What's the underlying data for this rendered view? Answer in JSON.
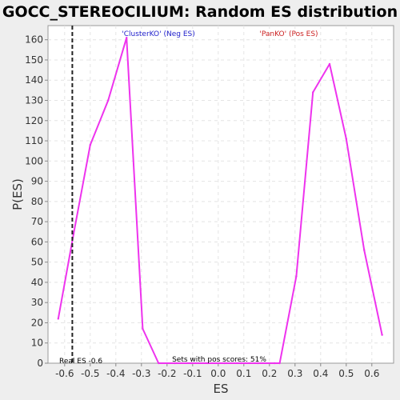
{
  "chart_data": {
    "type": "line",
    "title": "GOCC_STEREOCILIUM: Random ES distribution",
    "xlabel": "ES",
    "ylabel": "P(ES)",
    "xlim": [
      -0.665,
      0.685
    ],
    "ylim": [
      0,
      167
    ],
    "x_ticks": [
      "-0.6",
      "-0.5",
      "-0.4",
      "-0.3",
      "-0.2",
      "-0.1",
      "0.0",
      "0.1",
      "0.2",
      "0.3",
      "0.4",
      "0.5",
      "0.6"
    ],
    "y_ticks": [
      "0",
      "10",
      "20",
      "30",
      "40",
      "50",
      "60",
      "70",
      "80",
      "90",
      "100",
      "110",
      "120",
      "130",
      "140",
      "150",
      "160"
    ],
    "grid": true,
    "series": [
      {
        "color": "#ee33ee",
        "x": [
          -0.625,
          -0.565,
          -0.5,
          -0.43,
          -0.358,
          -0.295,
          -0.233,
          -0.17,
          -0.105,
          -0.04,
          0.025,
          0.09,
          0.155,
          0.22,
          0.24,
          0.305,
          0.37,
          0.435,
          0.5,
          0.57,
          0.64
        ],
        "y": [
          22,
          64,
          108,
          130,
          161,
          17,
          0,
          0,
          0,
          0,
          0,
          0,
          0,
          0,
          0,
          43,
          134,
          148,
          111,
          56,
          14
        ]
      }
    ],
    "real_es": {
      "x": -0.57,
      "label": "Real ES -0.6"
    },
    "annotations": {
      "neg_label": "'ClusterKO' (Neg ES)",
      "neg_color": "#2222cc",
      "pos_label": "'PanKO' (Pos ES)",
      "pos_color": "#cc2222",
      "bottom_label": "Sets with pos scores: 51%"
    }
  }
}
